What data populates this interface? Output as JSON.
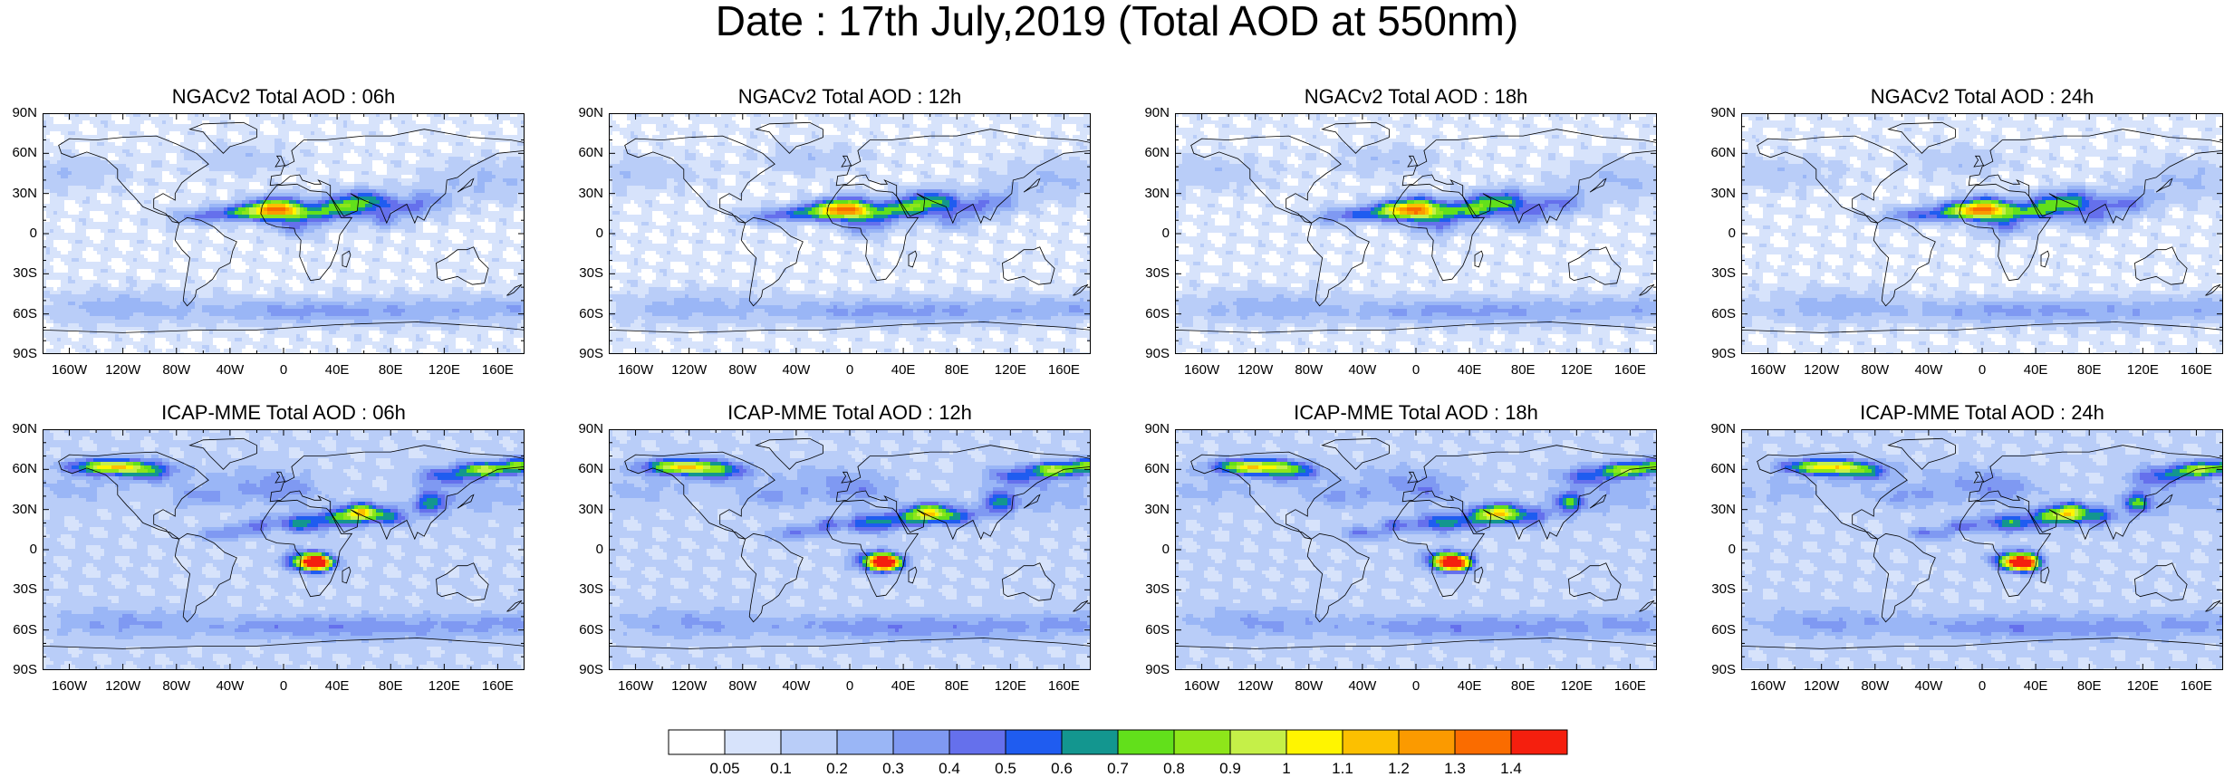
{
  "title": "Date : 17th July,2019 (Total AOD at 550nm)",
  "panels": [
    {
      "title": "NGACv2 Total AOD : 06h",
      "model": "NGACv2",
      "lead": "06h"
    },
    {
      "title": "NGACv2 Total AOD : 12h",
      "model": "NGACv2",
      "lead": "12h"
    },
    {
      "title": "NGACv2 Total AOD : 18h",
      "model": "NGACv2",
      "lead": "18h"
    },
    {
      "title": "NGACv2 Total AOD : 24h",
      "model": "NGACv2",
      "lead": "24h"
    },
    {
      "title": "ICAP-MME Total AOD : 06h",
      "model": "ICAP-MME",
      "lead": "06h"
    },
    {
      "title": "ICAP-MME Total AOD : 12h",
      "model": "ICAP-MME",
      "lead": "12h"
    },
    {
      "title": "ICAP-MME Total AOD : 18h",
      "model": "ICAP-MME",
      "lead": "18h"
    },
    {
      "title": "ICAP-MME Total AOD : 24h",
      "model": "ICAP-MME",
      "lead": "24h"
    }
  ],
  "lat_ticks": [
    "90N",
    "60N",
    "30N",
    "0",
    "30S",
    "60S",
    "90S"
  ],
  "lon_ticks": [
    "160W",
    "120W",
    "80W",
    "40W",
    "0",
    "40E",
    "80E",
    "120E",
    "160E"
  ],
  "colorbar": {
    "levels": [
      "0.05",
      "0.1",
      "0.2",
      "0.3",
      "0.4",
      "0.5",
      "0.6",
      "0.7",
      "0.8",
      "0.9",
      "1",
      "1.1",
      "1.2",
      "1.3",
      "1.4"
    ],
    "colors": [
      "#ffffff",
      "#d7e3fb",
      "#b9cdf8",
      "#9ab6f6",
      "#7f99f2",
      "#6570ec",
      "#1f5cf0",
      "#13968f",
      "#62e01b",
      "#8ee61a",
      "#c5f048",
      "#fff500",
      "#fcc000",
      "#fb9a00",
      "#fa6c00",
      "#f51f0e"
    ]
  }
}
